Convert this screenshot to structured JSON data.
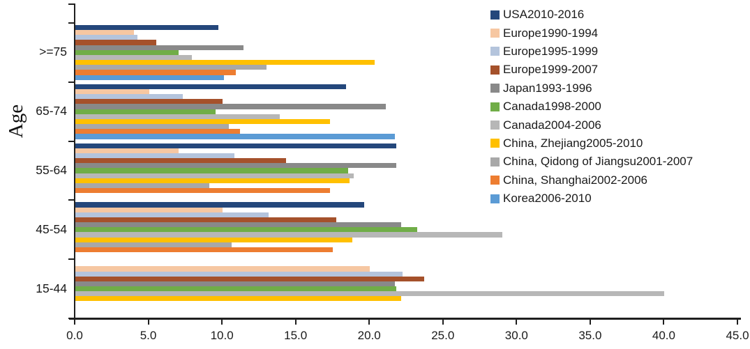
{
  "chart_data": {
    "type": "bar",
    "orientation": "horizontal",
    "title": "",
    "xlabel": "",
    "ylabel": "Age",
    "categories": [
      ">=75",
      "65-74",
      "55-64",
      "45-54",
      "15-44"
    ],
    "xlim": [
      0,
      45
    ],
    "x_tick_labels": [
      "0.0",
      "5.0",
      "10.0",
      "15.0",
      "20.0",
      "25.0",
      "30.0",
      "35.0",
      "40.0",
      "45.0"
    ],
    "grid": false,
    "legend_position": "top-right",
    "series": [
      {
        "name": "USA2010-2016",
        "color": "#24477B",
        "values": [
          9.7,
          18.4,
          21.8,
          19.6,
          null
        ]
      },
      {
        "name": "Europe1990-1994",
        "color": "#F6C7A2",
        "values": [
          4.0,
          5.0,
          7.0,
          10.0,
          20.0
        ]
      },
      {
        "name": "Europe1995-1999",
        "color": "#B4C4DC",
        "values": [
          4.2,
          7.3,
          10.8,
          13.1,
          22.2
        ]
      },
      {
        "name": "Europe1999-2007",
        "color": "#A5512B",
        "values": [
          5.5,
          10.0,
          14.3,
          17.7,
          23.7
        ]
      },
      {
        "name": "Japan1993-1996",
        "color": "#898989",
        "values": [
          11.4,
          21.1,
          21.8,
          22.1,
          21.7
        ]
      },
      {
        "name": "Canada1998-2000",
        "color": "#70AD47",
        "values": [
          7.0,
          9.5,
          18.5,
          23.2,
          21.8
        ]
      },
      {
        "name": "Canada2004-2006",
        "color": "#B7B7B7",
        "values": [
          7.9,
          13.9,
          18.9,
          29.0,
          40.0
        ]
      },
      {
        "name": "China, Zhejiang2005-2010",
        "color": "#FFC000",
        "values": [
          20.3,
          17.3,
          18.6,
          18.8,
          22.1
        ]
      },
      {
        "name": "China, Qidong of Jiangsu2001-2007",
        "color": "#A8A8A8",
        "values": [
          13.0,
          10.4,
          9.1,
          10.6,
          null
        ]
      },
      {
        "name": "China, Shanghai2002-2006",
        "color": "#ED7D31",
        "values": [
          10.9,
          11.2,
          17.3,
          17.5,
          null
        ]
      },
      {
        "name": "Korea2006-2010",
        "color": "#5B9BD5",
        "values": [
          10.1,
          21.7,
          null,
          null,
          null
        ]
      }
    ]
  }
}
